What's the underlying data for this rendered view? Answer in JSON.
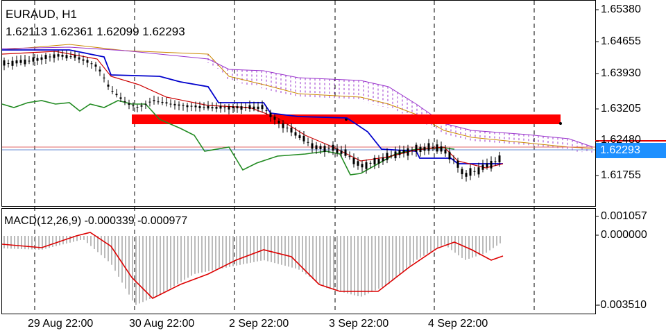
{
  "header": {
    "title": "EURAUD, H1",
    "ohlc": "1.62113 1.62361 1.62099 1.62293"
  },
  "price_axis": {
    "labels": [
      "1.65380",
      "1.64655",
      "1.63930",
      "1.63205",
      "1.62480",
      "1.61755"
    ],
    "current_price": "1.62293"
  },
  "indicator": {
    "label": "MACD(12,26,9) -0.000339 -0.000977",
    "axis_labels": [
      "0.001057",
      "0.000000",
      "-0.003510"
    ]
  },
  "time_axis": {
    "labels": [
      "29 Aug 22:00",
      "30 Aug 22:00",
      "2 Sep 22:00",
      "3 Sep 22:00",
      "4 Sep 22:00"
    ]
  },
  "colors": {
    "bull_candle": "#000000",
    "bear_candle": "#000000",
    "tenkan": "#cc0000",
    "kijun": "#0000cc",
    "chikou": "#228b22",
    "senkou_a": "#cc8800",
    "senkou_b": "#9933cc",
    "sr_zone": "#ff0000",
    "current_price_box": "#1e90ff",
    "macd_hist": "#bbbbbb",
    "macd_signal": "#dd0000"
  }
}
